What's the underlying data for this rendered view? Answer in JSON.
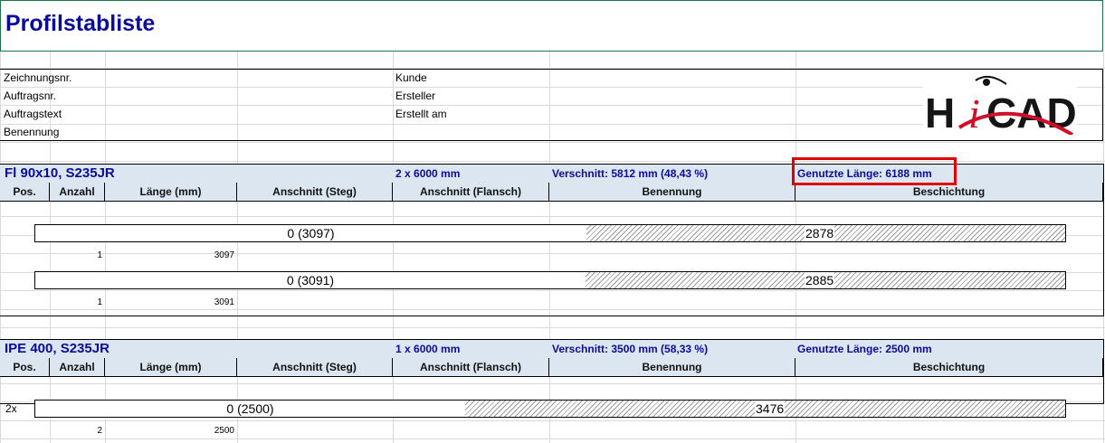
{
  "title": "Profilstabliste",
  "info": {
    "left_labels": [
      "Zeichnungsnr.",
      "Auftragsnr.",
      "Auftragstext",
      "Benennung"
    ],
    "right_labels": [
      "Kunde",
      "Ersteller",
      "Erstellt am"
    ],
    "logo_text": "HiCAD"
  },
  "columns": [
    "Pos.",
    "Anzahl",
    "Länge (mm)",
    "Anschnitt (Steg)",
    "Anschnitt (Flansch)",
    "Benennung",
    "Beschichtung"
  ],
  "sections": [
    {
      "profile": "Fl 90x10, S235JR",
      "stock": "2 x 6000 mm",
      "waste": "Verschnitt: 5812 mm (48,43 %)",
      "used": "Genutzte Länge: 6188 mm",
      "highlighted": true,
      "bars": [
        {
          "prefix": "",
          "used_label": "0 (3097)",
          "waste_label": "2878",
          "used_mm": 3097,
          "total_mm": 6000,
          "count": "1",
          "length": "3097"
        },
        {
          "prefix": "",
          "used_label": "0 (3091)",
          "waste_label": "2885",
          "used_mm": 3091,
          "total_mm": 6000,
          "count": "1",
          "length": "3091"
        }
      ]
    },
    {
      "profile": "IPE 400, S235JR",
      "stock": "1 x 6000 mm",
      "waste": "Verschnitt: 3500 mm (58,33 %)",
      "used": "Genutzte Länge: 2500 mm",
      "highlighted": false,
      "bars": [
        {
          "prefix": "2x",
          "used_label": "0 (2500)",
          "waste_label": "3476",
          "used_mm": 2500,
          "total_mm": 6000,
          "count": "2",
          "length": "2500"
        }
      ]
    }
  ],
  "colors": {
    "heading": "#0b0b99",
    "header_bg": "#dce6f1",
    "highlight": "#e00000",
    "logo_red": "#d0102a"
  }
}
